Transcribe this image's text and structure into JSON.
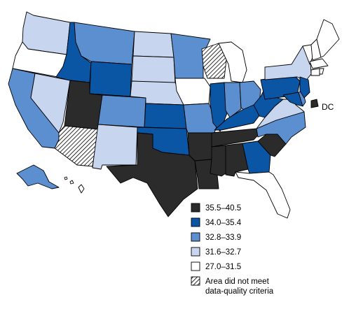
{
  "colors": {
    "c5": "#2b2b2b",
    "c4": "#0a55a4",
    "c3": "#5b8fd0",
    "c2": "#c7d5ef",
    "c1": "#ffffff",
    "hatch": "#000000"
  },
  "dc_label": "DC",
  "legend": {
    "items": [
      {
        "label": "35.5–40.5",
        "cls": "c5"
      },
      {
        "label": "34.0–35.4",
        "cls": "c4"
      },
      {
        "label": "32.8–33.9",
        "cls": "c3"
      },
      {
        "label": "31.6–32.7",
        "cls": "c2"
      },
      {
        "label": "27.0–31.5",
        "cls": "c1"
      },
      {
        "label": "Area did not meet data-quality criteria",
        "cls": "hatch",
        "lines": [
          "Area did not meet",
          "data-quality criteria"
        ]
      }
    ]
  },
  "states": {
    "WA": "c2",
    "OR": "c1",
    "CA": "c3",
    "NV": "c2",
    "ID": "c4",
    "MT": "c3",
    "WY": "c4",
    "UT": "c5",
    "AZ": "hatch",
    "CO": "c3",
    "NM": "c2",
    "ND": "c2",
    "SD": "c2",
    "NE": "c2",
    "KS": "c4",
    "OK": "c4",
    "TX": "c5",
    "MN": "c3",
    "IA": "c1",
    "MO": "c3",
    "AR": "c5",
    "LA": "c5",
    "WI": "hatch",
    "IL": "c4",
    "MS": "c5",
    "MI": "c1",
    "IN": "c3",
    "KY": "c4",
    "TN": "c5",
    "AL": "c5",
    "OH": "c3",
    "GA": "c4",
    "FL": "c1",
    "SC": "c5",
    "NC": "c3",
    "WV": "c4",
    "VA": "c2",
    "PA": "c4",
    "NY": "c2",
    "VT": "c1",
    "NH": "c1",
    "ME": "c1",
    "MA": "c1",
    "RI": "c1",
    "CT": "c1",
    "NJ": "c4",
    "DE": "c3",
    "MD": "c4",
    "DC": "c5",
    "AK": "c3",
    "HI": "c1"
  }
}
